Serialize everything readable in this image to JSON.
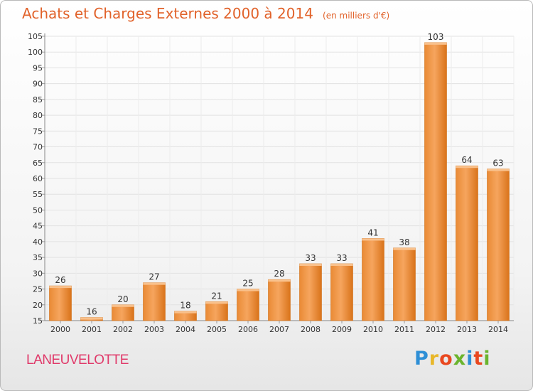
{
  "header": {
    "title": "Achats et Charges Externes 2000 à 2014",
    "subtitle": "(en milliers d'€)"
  },
  "footer": {
    "town": "LANEUVELOTTE",
    "logo_letters": [
      "P",
      "r",
      "o",
      "x",
      "i",
      "t",
      "i"
    ]
  },
  "colors": {
    "title": "#e1622a",
    "bar_light": "#f6a55e",
    "bar_dark": "#e07e20",
    "town": "#e03a6a"
  },
  "chart_data": {
    "type": "bar",
    "title": "Achats et Charges Externes 2000 à 2014",
    "subtitle": "(en milliers d'€)",
    "xlabel": "",
    "ylabel": "",
    "categories": [
      "2000",
      "2001",
      "2002",
      "2003",
      "2004",
      "2005",
      "2006",
      "2007",
      "2008",
      "2009",
      "2010",
      "2011",
      "2012",
      "2013",
      "2014"
    ],
    "values": [
      26,
      16,
      20,
      27,
      18,
      21,
      25,
      28,
      33,
      33,
      41,
      38,
      103,
      64,
      63
    ],
    "ylim": [
      15,
      105
    ],
    "yticks": [
      15,
      20,
      25,
      30,
      35,
      40,
      45,
      50,
      55,
      60,
      65,
      70,
      75,
      80,
      85,
      90,
      95,
      100,
      105
    ],
    "grid": true,
    "legend": "none"
  }
}
